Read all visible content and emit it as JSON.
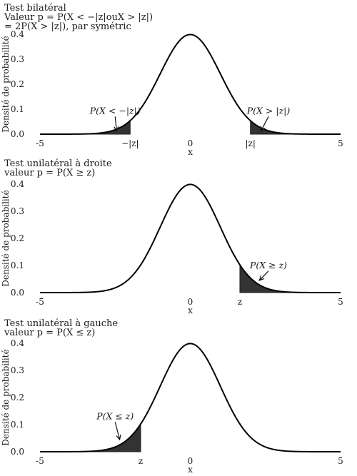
{
  "chart_data": [
    {
      "type": "area",
      "panel": "bilateral",
      "title": [
        "Test bilatéral",
        "Valeur p = P(X < −|z|ouX > |z|)",
        "= 2P(X > |z|), par symétric"
      ],
      "xlabel": "x",
      "ylabel": "Densité de probabilité",
      "xlim": [
        -5,
        5
      ],
      "ylim": [
        0,
        0.4
      ],
      "x_ticks": [
        {
          "value": -5,
          "label": "-5"
        },
        {
          "value": -2,
          "label": "−|z|"
        },
        {
          "value": 0,
          "label": "0"
        },
        {
          "value": 2,
          "label": "|z|"
        },
        {
          "value": 5,
          "label": "5"
        }
      ],
      "y_ticks": [
        0.0,
        0.1,
        0.2,
        0.3,
        0.4
      ],
      "y_tick_labels": [
        "0.0",
        "0.1",
        "0.2",
        "0.3",
        "0.4"
      ],
      "curve": "standard normal density",
      "shaded_regions": [
        [
          -5,
          -2
        ],
        [
          2,
          5
        ]
      ],
      "annotations": [
        {
          "text": "P(X < −|z|)",
          "x": -2.5,
          "y": 0.082,
          "arrow_to": [
            -2.45,
            0.012
          ]
        },
        {
          "text": "P(X > |z|)",
          "x": 2.6,
          "y": 0.082,
          "arrow_to": [
            2.35,
            0.012
          ]
        }
      ]
    },
    {
      "type": "area",
      "panel": "right-tailed",
      "title": [
        "Test unilatéral à droite",
        "valeur p = P(X ≥ z)"
      ],
      "xlabel": "x",
      "ylabel": "Densité de probabilité",
      "xlim": [
        -5,
        5
      ],
      "ylim": [
        0,
        0.4
      ],
      "x_ticks": [
        {
          "value": -5,
          "label": "-5"
        },
        {
          "value": 0,
          "label": "0"
        },
        {
          "value": 1.65,
          "label": "z"
        },
        {
          "value": 5,
          "label": "5"
        }
      ],
      "y_ticks": [
        0.0,
        0.1,
        0.2,
        0.3,
        0.4
      ],
      "y_tick_labels": [
        "0.0",
        "0.1",
        "0.2",
        "0.3",
        "0.4"
      ],
      "curve": "standard normal density",
      "shaded_regions": [
        [
          1.65,
          5
        ]
      ],
      "annotations": [
        {
          "text": "P(X ≥ z)",
          "x": 2.6,
          "y": 0.09,
          "arrow_to": [
            2.3,
            0.045
          ]
        }
      ]
    },
    {
      "type": "area",
      "panel": "left-tailed",
      "title": [
        "Test unilatéral à gauche",
        "valeur p = P(X ≤ z)"
      ],
      "xlabel": "x",
      "ylabel": "Densité de probabilité",
      "xlim": [
        -5,
        5
      ],
      "ylim": [
        0,
        0.4
      ],
      "x_ticks": [
        {
          "value": -5,
          "label": "-5"
        },
        {
          "value": -1.65,
          "label": "z"
        },
        {
          "value": 0,
          "label": "0"
        },
        {
          "value": 5,
          "label": "5"
        }
      ],
      "y_ticks": [
        0.0,
        0.1,
        0.2,
        0.3,
        0.4
      ],
      "y_tick_labels": [
        "0.0",
        "0.1",
        "0.2",
        "0.3",
        "0.4"
      ],
      "curve": "standard normal density",
      "shaded_regions": [
        [
          -5,
          -1.65
        ]
      ],
      "annotations": [
        {
          "text": "P(X ≤ z)",
          "x": -2.5,
          "y": 0.12,
          "arrow_to": [
            -2.35,
            0.045
          ]
        }
      ]
    }
  ]
}
